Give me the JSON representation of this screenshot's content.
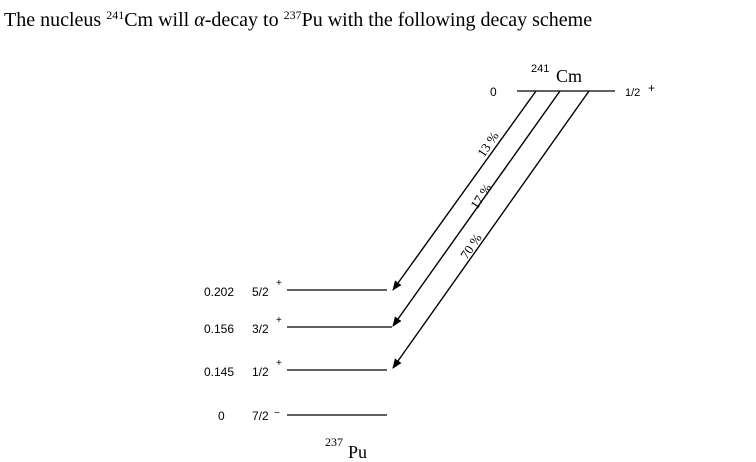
{
  "title": {
    "prefix": "The nucleus ",
    "parent_mass": "241",
    "parent_symbol": "Cm",
    "mid": " will ",
    "alpha": "α",
    "mid2": "-decay to ",
    "daughter_mass": "237",
    "daughter_symbol": "Pu",
    "suffix": " with the following decay scheme"
  },
  "parent": {
    "mass": "241",
    "symbol": "Cm",
    "energy": "0",
    "spin": "1/2",
    "parity": "+"
  },
  "daughter": {
    "mass": "237",
    "symbol": "Pu"
  },
  "levels": [
    {
      "energy": "0.202",
      "spin": "5/2",
      "parity": "+"
    },
    {
      "energy": "0.156",
      "spin": "3/2",
      "parity": "+"
    },
    {
      "energy": "0.145",
      "spin": "1/2",
      "parity": "+"
    },
    {
      "energy": "0",
      "spin": "7/2",
      "parity": "−"
    }
  ],
  "branches": [
    {
      "label": "13 %",
      "to_level": "0.202"
    },
    {
      "label": "17 %",
      "to_level": "0.156"
    },
    {
      "label": "70 %",
      "to_level": "0.145"
    }
  ]
}
